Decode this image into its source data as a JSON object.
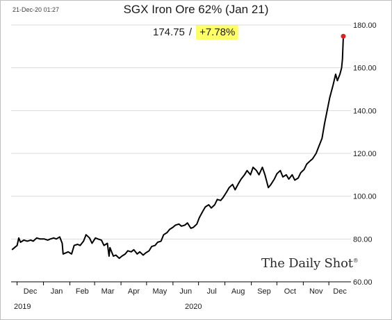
{
  "timestamp": "21-Dec-20 01:27",
  "chart_data": {
    "type": "line",
    "title": "SGX Iron Ore 62% (Jan 21)",
    "last_value_label": "174.75",
    "change_label": "+7.78%",
    "highlight_color": "#ffff66",
    "line_color": "#000000",
    "endpoint_color": "#e02020",
    "xlabel": "",
    "ylabel": "",
    "ylim": [
      60,
      180
    ],
    "y_ticks": [
      "60.00",
      "80.00",
      "100.00",
      "120.00",
      "140.00",
      "160.00",
      "180.00"
    ],
    "y_tick_values": [
      60,
      80,
      100,
      120,
      140,
      160,
      180
    ],
    "grid": "horizontal",
    "x_range": [
      "2019-11-24",
      "2020-12-27"
    ],
    "x_ticks": [
      {
        "label": "Dec",
        "date": "2019-12-01"
      },
      {
        "label": "Jan",
        "date": "2020-01-01"
      },
      {
        "label": "Feb",
        "date": "2020-02-01"
      },
      {
        "label": "Mar",
        "date": "2020-03-01"
      },
      {
        "label": "Apr",
        "date": "2020-04-01"
      },
      {
        "label": "May",
        "date": "2020-05-01"
      },
      {
        "label": "Jun",
        "date": "2020-06-01"
      },
      {
        "label": "Jul",
        "date": "2020-07-01"
      },
      {
        "label": "Aug",
        "date": "2020-08-01"
      },
      {
        "label": "Sep",
        "date": "2020-09-01"
      },
      {
        "label": "Oct",
        "date": "2020-10-01"
      },
      {
        "label": "Nov",
        "date": "2020-11-01"
      },
      {
        "label": "Dec",
        "date": "2020-12-01"
      }
    ],
    "year_labels": [
      {
        "label": "2019",
        "date": "2019-12-01"
      },
      {
        "label": "2020",
        "date": "2020-06-01"
      }
    ],
    "series": [
      {
        "points": [
          [
            "2019-11-25",
            75.0
          ],
          [
            "2019-11-28",
            76.0
          ],
          [
            "2019-12-01",
            77.0
          ],
          [
            "2019-12-03",
            80.5
          ],
          [
            "2019-12-05",
            78.5
          ],
          [
            "2019-12-09",
            79.5
          ],
          [
            "2019-12-13",
            79.0
          ],
          [
            "2019-12-17",
            79.5
          ],
          [
            "2019-12-20",
            79.0
          ],
          [
            "2019-12-24",
            80.5
          ],
          [
            "2019-12-28",
            80.0
          ],
          [
            "2020-01-02",
            80.0
          ],
          [
            "2020-01-06",
            79.5
          ],
          [
            "2020-01-09",
            80.0
          ],
          [
            "2020-01-13",
            80.5
          ],
          [
            "2020-01-16",
            80.0
          ],
          [
            "2020-01-20",
            81.0
          ],
          [
            "2020-01-23",
            78.0
          ],
          [
            "2020-01-24",
            73.0
          ],
          [
            "2020-01-27",
            73.5
          ],
          [
            "2020-01-30",
            74.0
          ],
          [
            "2020-02-03",
            73.0
          ],
          [
            "2020-02-06",
            77.0
          ],
          [
            "2020-02-10",
            77.5
          ],
          [
            "2020-02-13",
            77.0
          ],
          [
            "2020-02-17",
            79.0
          ],
          [
            "2020-02-20",
            82.0
          ],
          [
            "2020-02-24",
            80.5
          ],
          [
            "2020-02-27",
            78.0
          ],
          [
            "2020-03-02",
            80.5
          ],
          [
            "2020-03-05",
            80.0
          ],
          [
            "2020-03-09",
            79.5
          ],
          [
            "2020-03-12",
            77.0
          ],
          [
            "2020-03-16",
            78.0
          ],
          [
            "2020-03-18",
            72.0
          ],
          [
            "2020-03-19",
            76.0
          ],
          [
            "2020-03-23",
            72.0
          ],
          [
            "2020-03-26",
            72.5
          ],
          [
            "2020-03-30",
            71.0
          ],
          [
            "2020-04-02",
            72.0
          ],
          [
            "2020-04-06",
            73.0
          ],
          [
            "2020-04-09",
            74.5
          ],
          [
            "2020-04-13",
            74.0
          ],
          [
            "2020-04-16",
            75.0
          ],
          [
            "2020-04-20",
            73.0
          ],
          [
            "2020-04-23",
            74.0
          ],
          [
            "2020-04-27",
            72.5
          ],
          [
            "2020-04-30",
            73.5
          ],
          [
            "2020-05-04",
            74.5
          ],
          [
            "2020-05-07",
            76.5
          ],
          [
            "2020-05-11",
            77.0
          ],
          [
            "2020-05-14",
            78.5
          ],
          [
            "2020-05-18",
            79.0
          ],
          [
            "2020-05-21",
            82.0
          ],
          [
            "2020-05-25",
            83.0
          ],
          [
            "2020-05-28",
            84.5
          ],
          [
            "2020-06-01",
            85.5
          ],
          [
            "2020-06-04",
            86.5
          ],
          [
            "2020-06-08",
            87.0
          ],
          [
            "2020-06-11",
            86.0
          ],
          [
            "2020-06-15",
            86.5
          ],
          [
            "2020-06-18",
            87.5
          ],
          [
            "2020-06-22",
            85.0
          ],
          [
            "2020-06-25",
            85.5
          ],
          [
            "2020-06-29",
            87.0
          ],
          [
            "2020-07-02",
            90.0
          ],
          [
            "2020-07-06",
            93.0
          ],
          [
            "2020-07-09",
            95.0
          ],
          [
            "2020-07-13",
            96.0
          ],
          [
            "2020-07-16",
            94.5
          ],
          [
            "2020-07-20",
            96.0
          ],
          [
            "2020-07-23",
            98.5
          ],
          [
            "2020-07-27",
            98.0
          ],
          [
            "2020-07-30",
            99.5
          ],
          [
            "2020-08-03",
            102.0
          ],
          [
            "2020-08-06",
            104.0
          ],
          [
            "2020-08-10",
            105.5
          ],
          [
            "2020-08-13",
            103.0
          ],
          [
            "2020-08-17",
            106.0
          ],
          [
            "2020-08-20",
            108.0
          ],
          [
            "2020-08-24",
            110.0
          ],
          [
            "2020-08-27",
            112.0
          ],
          [
            "2020-08-31",
            110.0
          ],
          [
            "2020-09-03",
            113.5
          ],
          [
            "2020-09-07",
            112.0
          ],
          [
            "2020-09-10",
            110.0
          ],
          [
            "2020-09-14",
            113.5
          ],
          [
            "2020-09-17",
            110.0
          ],
          [
            "2020-09-21",
            104.0
          ],
          [
            "2020-09-24",
            105.5
          ],
          [
            "2020-09-28",
            108.0
          ],
          [
            "2020-10-01",
            110.5
          ],
          [
            "2020-10-05",
            112.0
          ],
          [
            "2020-10-08",
            109.0
          ],
          [
            "2020-10-12",
            110.0
          ],
          [
            "2020-10-15",
            108.0
          ],
          [
            "2020-10-19",
            110.0
          ],
          [
            "2020-10-22",
            107.5
          ],
          [
            "2020-10-26",
            108.5
          ],
          [
            "2020-10-29",
            111.0
          ],
          [
            "2020-11-02",
            112.5
          ],
          [
            "2020-11-05",
            115.0
          ],
          [
            "2020-11-09",
            116.5
          ],
          [
            "2020-11-12",
            117.5
          ],
          [
            "2020-11-16",
            120.0
          ],
          [
            "2020-11-19",
            123.0
          ],
          [
            "2020-11-23",
            127.0
          ],
          [
            "2020-11-26",
            134.0
          ],
          [
            "2020-11-29",
            140.0
          ],
          [
            "2020-12-02",
            146.0
          ],
          [
            "2020-12-06",
            152.0
          ],
          [
            "2020-12-09",
            157.0
          ],
          [
            "2020-12-11",
            154.0
          ],
          [
            "2020-12-14",
            157.0
          ],
          [
            "2020-12-16",
            160.0
          ],
          [
            "2020-12-17",
            164.0
          ],
          [
            "2020-12-18",
            174.75
          ]
        ]
      }
    ]
  },
  "branding": {
    "logo_text": "The Daily Shot",
    "logo_mark": "®"
  }
}
